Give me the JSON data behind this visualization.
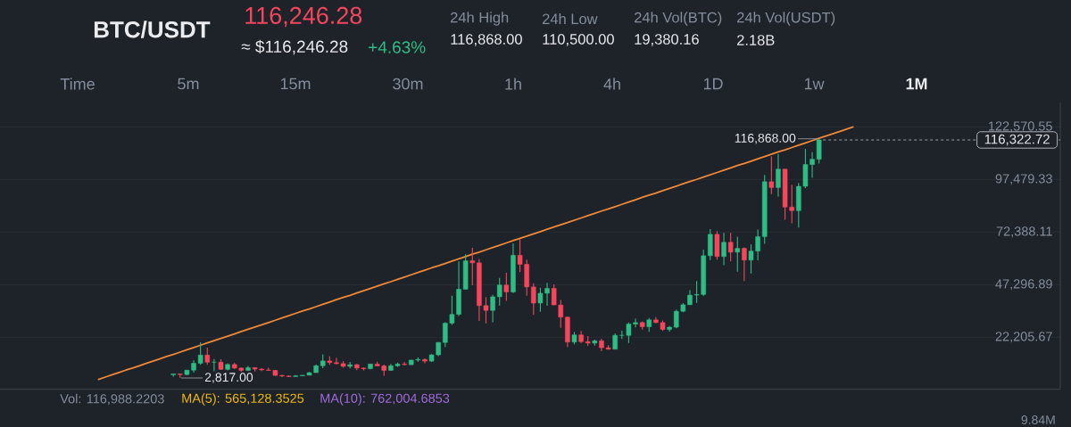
{
  "chart_data": {
    "type": "candlestick",
    "title": "BTC/USDT",
    "categories": [
      null,
      null,
      null,
      null,
      null,
      null,
      null,
      null,
      null,
      null,
      null,
      null,
      null,
      null,
      null,
      null,
      null,
      null,
      null,
      null,
      null,
      null,
      null,
      null,
      null,
      null,
      null,
      null,
      null,
      null,
      null,
      null,
      null,
      null,
      null,
      null,
      null,
      null,
      null,
      null,
      null,
      null,
      null,
      null,
      null,
      null,
      null,
      null,
      null,
      null,
      null,
      null,
      null,
      null,
      null,
      null,
      null,
      null,
      null,
      null,
      null,
      null,
      null,
      null,
      null,
      null,
      null,
      null,
      null,
      null,
      null,
      null,
      null,
      null,
      null,
      null,
      null,
      null,
      null,
      null,
      null,
      null,
      null,
      null,
      null,
      null,
      null,
      null,
      null,
      null,
      null,
      null,
      null,
      null,
      null,
      null,
      null,
      null,
      null,
      null,
      null,
      null,
      null,
      null,
      null,
      null,
      null,
      null,
      null,
      null,
      null,
      null,
      null,
      null,
      null,
      null,
      null,
      null,
      null,
      null,
      null,
      null,
      null,
      null,
      null,
      null,
      null,
      null,
      null,
      null,
      null,
      null,
      null,
      null,
      null,
      null,
      null,
      null,
      null,
      null,
      null,
      null,
      null,
      null,
      null,
      null,
      null,
      null,
      null,
      null,
      null,
      null,
      null,
      null,
      null,
      null
    ],
    "ohlc": [
      null,
      null,
      null,
      null,
      null,
      null,
      null,
      null,
      null,
      null,
      null,
      null,
      null,
      null,
      null,
      null,
      null,
      null,
      null,
      null,
      null,
      null,
      null,
      null,
      null,
      [
        4300,
        4700,
        3400,
        4700
      ],
      [
        4700,
        4900,
        2817,
        4400
      ],
      [
        4400,
        6500,
        4100,
        6500
      ],
      [
        6500,
        11300,
        5300,
        9800
      ],
      [
        9800,
        19800,
        9000,
        13700
      ],
      [
        13700,
        17200,
        9000,
        10300
      ],
      [
        10300,
        11800,
        6000,
        10300
      ],
      [
        10300,
        11700,
        6600,
        6900
      ],
      [
        6900,
        9800,
        6400,
        9200
      ],
      [
        9200,
        10000,
        7000,
        7500
      ],
      [
        7500,
        7800,
        5800,
        6400
      ],
      [
        6400,
        8500,
        6100,
        7700
      ],
      [
        7700,
        7800,
        5900,
        7000
      ],
      [
        7000,
        7400,
        6100,
        6600
      ],
      [
        6600,
        7700,
        6200,
        6400
      ],
      [
        6400,
        6600,
        3700,
        4000
      ],
      [
        4000,
        4300,
        3200,
        3700
      ],
      [
        3700,
        4100,
        3300,
        3400
      ],
      [
        3400,
        4200,
        3400,
        3800
      ],
      [
        3800,
        4100,
        3700,
        4100
      ],
      [
        4100,
        5600,
        4100,
        5300
      ],
      [
        5300,
        9100,
        5300,
        8600
      ],
      [
        8600,
        14000,
        7400,
        10900
      ],
      [
        10900,
        13100,
        9000,
        10100
      ],
      [
        10100,
        12300,
        9300,
        9600
      ],
      [
        9600,
        10900,
        7700,
        8300
      ],
      [
        8300,
        10400,
        7300,
        9100
      ],
      [
        9100,
        9500,
        6500,
        7500
      ],
      [
        7500,
        7800,
        6400,
        7200
      ],
      [
        7200,
        9600,
        6900,
        9400
      ],
      [
        9400,
        10500,
        8400,
        8500
      ],
      [
        8500,
        9200,
        3800,
        6400
      ],
      [
        6400,
        9500,
        6200,
        8600
      ],
      [
        8600,
        10100,
        8100,
        9400
      ],
      [
        9400,
        10400,
        8800,
        9100
      ],
      [
        9100,
        11400,
        8900,
        11300
      ],
      [
        11300,
        12500,
        10500,
        11600
      ],
      [
        11600,
        12100,
        9800,
        10800
      ],
      [
        10800,
        14100,
        10400,
        13800
      ],
      [
        13800,
        19900,
        13200,
        19700
      ],
      [
        19700,
        29300,
        17600,
        28900
      ],
      [
        28900,
        42000,
        28100,
        33100
      ],
      [
        33100,
        58400,
        32300,
        45100
      ],
      [
        45100,
        61800,
        45000,
        58700
      ],
      [
        58700,
        64900,
        47000,
        57700
      ],
      [
        57700,
        59500,
        30000,
        37300
      ],
      [
        37300,
        41300,
        28800,
        35000
      ],
      [
        35000,
        42400,
        29300,
        41500
      ],
      [
        41500,
        50500,
        37300,
        47100
      ],
      [
        47100,
        52900,
        39600,
        43800
      ],
      [
        43800,
        67000,
        43300,
        61300
      ],
      [
        61300,
        69000,
        53300,
        57000
      ],
      [
        57000,
        59100,
        42000,
        46200
      ],
      [
        46200,
        48000,
        32900,
        38500
      ],
      [
        38500,
        45800,
        34300,
        43200
      ],
      [
        43200,
        48200,
        37200,
        45500
      ],
      [
        45500,
        47400,
        37600,
        37600
      ],
      [
        37600,
        40000,
        26700,
        31800
      ],
      [
        31800,
        32000,
        17600,
        19900
      ],
      [
        19900,
        24700,
        18800,
        23300
      ],
      [
        23300,
        25200,
        19500,
        20100
      ],
      [
        20100,
        22800,
        18100,
        19400
      ],
      [
        19400,
        21100,
        18200,
        20500
      ],
      [
        20500,
        21500,
        15500,
        17200
      ],
      [
        17200,
        18400,
        16300,
        16500
      ],
      [
        16500,
        24000,
        16500,
        23100
      ],
      [
        23100,
        25300,
        21400,
        23100
      ],
      [
        23100,
        29200,
        19500,
        28500
      ],
      [
        28500,
        31000,
        26900,
        29200
      ],
      [
        29200,
        29800,
        25800,
        27200
      ],
      [
        27200,
        31400,
        24800,
        30500
      ],
      [
        30500,
        31800,
        28900,
        29200
      ],
      [
        29200,
        30200,
        25200,
        25900
      ],
      [
        25900,
        27500,
        24900,
        27000
      ],
      [
        27000,
        35300,
        26500,
        34600
      ],
      [
        34600,
        38500,
        34100,
        37700
      ],
      [
        37700,
        44700,
        37600,
        42300
      ],
      [
        42300,
        49000,
        38600,
        42600
      ],
      [
        42600,
        64000,
        41900,
        61100
      ],
      [
        61100,
        73800,
        59000,
        71300
      ],
      [
        71300,
        72800,
        59200,
        60700
      ],
      [
        60700,
        72000,
        56600,
        67500
      ],
      [
        67500,
        72000,
        58400,
        62800
      ],
      [
        62800,
        70100,
        53500,
        64600
      ],
      [
        64600,
        65100,
        49000,
        59000
      ],
      [
        59000,
        66500,
        52600,
        63300
      ],
      [
        63300,
        73600,
        58900,
        70200
      ],
      [
        70200,
        99600,
        66800,
        96400
      ],
      [
        96400,
        108400,
        90500,
        93600
      ],
      [
        93600,
        109600,
        89300,
        102400
      ],
      [
        102400,
        102500,
        78300,
        84300
      ],
      [
        84300,
        95000,
        76600,
        82600
      ],
      [
        82600,
        95800,
        74500,
        94200
      ],
      [
        94200,
        112000,
        93400,
        104600
      ],
      [
        104600,
        110500,
        98200,
        107100
      ],
      [
        107100,
        116868,
        105100,
        116322.72
      ],
      null,
      null,
      null,
      null,
      null,
      null,
      null,
      null,
      null,
      null,
      null,
      null,
      null,
      null,
      null,
      null,
      null,
      null,
      null,
      null,
      null,
      null,
      null,
      null,
      null,
      null,
      null,
      null,
      null,
      null,
      null,
      null,
      null,
      null,
      null
    ],
    "colors": [
      null,
      null,
      null,
      null,
      null,
      null,
      null,
      null,
      null,
      null,
      null,
      null,
      null,
      null,
      null,
      null,
      null,
      null,
      null,
      null,
      null,
      null,
      null,
      null,
      null,
      "#2ebd85",
      "#f6465d",
      "#2ebd85",
      "#2ebd85",
      "#2ebd85",
      "#f6465d",
      "#2ebd85",
      "#f6465d",
      "#2ebd85",
      "#f6465d",
      "#f6465d",
      "#2ebd85",
      "#f6465d",
      "#f6465d",
      "#f6465d",
      "#f6465d",
      "#f6465d",
      "#f6465d",
      "#2ebd85",
      "#2ebd85",
      "#2ebd85",
      "#2ebd85",
      "#2ebd85",
      "#f6465d",
      "#f6465d",
      "#f6465d",
      "#2ebd85",
      "#f6465d",
      "#f6465d",
      "#2ebd85",
      "#f6465d",
      "#f6465d",
      "#2ebd85",
      "#2ebd85",
      "#f6465d",
      "#2ebd85",
      "#2ebd85",
      "#f6465d",
      "#2ebd85",
      "#2ebd85",
      "#2ebd85",
      "#2ebd85",
      "#2ebd85",
      "#2ebd85",
      "#f6465d",
      "#f6465d",
      "#f6465d",
      "#2ebd85",
      "#2ebd85",
      "#f6465d",
      "#2ebd85",
      "#f6465d",
      "#f6465d",
      "#f6465d",
      "#2ebd85",
      "#2ebd85",
      "#f6465d",
      "#f6465d",
      "#f6465d",
      "#2ebd85",
      "#f6465d",
      "#f6465d",
      "#2ebd85",
      "#f6465d",
      "#f6465d",
      "#2ebd85",
      "#2ebd85",
      "#2ebd85",
      "#2ebd85",
      "#f6465d",
      "#2ebd85",
      "#f6465d",
      "#f6465d",
      "#2ebd85",
      "#2ebd85",
      "#2ebd85",
      "#2ebd85",
      "#2ebd85",
      "#2ebd85",
      "#2ebd85",
      "#f6465d",
      "#2ebd85",
      "#f6465d",
      "#2ebd85",
      "#f6465d",
      "#2ebd85",
      "#2ebd85",
      "#2ebd85",
      "#f6465d",
      "#2ebd85",
      "#f6465d",
      "#f6465d",
      "#2ebd85",
      "#2ebd85",
      "#2ebd85",
      "#2ebd85",
      null,
      null,
      null,
      null,
      null,
      null,
      null,
      null,
      null,
      null,
      null,
      null,
      null,
      null,
      null,
      null,
      null,
      null,
      null,
      null,
      null,
      null,
      null,
      null,
      null,
      null,
      null,
      null,
      null,
      null,
      null,
      null,
      null,
      null,
      null
    ],
    "series": [
      {
        "type": "line",
        "color": "#f0883a",
        "values": [
          null,
          null,
          null,
          null,
          null,
          null,
          null,
          null,
          null,
          null,
          null,
          null,
          null,
          null,
          2100,
          3200,
          4300,
          5400,
          6500,
          7500,
          8600,
          9700,
          10800,
          11900,
          13000,
          14000,
          15100,
          16200,
          17300,
          18400,
          19500,
          20600,
          21600,
          22700,
          23800,
          24900,
          26000,
          27100,
          28100,
          29200,
          30300,
          31400,
          32500,
          33600,
          34700,
          35700,
          36800,
          37900,
          39000,
          40100,
          41200,
          42200,
          43300,
          44400,
          45500,
          46600,
          47700,
          48700,
          49800,
          50900,
          52000,
          53100,
          54200,
          55300,
          56300,
          57400,
          58500,
          59600,
          60700,
          61800,
          62800,
          63900,
          65000,
          66100,
          67200,
          68300,
          69400,
          70400,
          71500,
          72600,
          73700,
          74800,
          75900,
          76900,
          78000,
          79100,
          80200,
          81300,
          82400,
          83400,
          84500,
          85600,
          86700,
          87800,
          88900,
          90000,
          91000,
          92100,
          93200,
          94300,
          95400,
          96500,
          97500,
          98600,
          99700,
          100800,
          101900,
          103000,
          104100,
          105100,
          106200,
          107300,
          108400,
          109500,
          110600,
          111600,
          112700,
          113800,
          114900,
          116000,
          117100,
          118200,
          119200,
          120300,
          121400,
          122500,
          null,
          null,
          null,
          null,
          null,
          null,
          null,
          null,
          null,
          null,
          null,
          null,
          null,
          null,
          null,
          null,
          null,
          null,
          null,
          null,
          null,
          null,
          null,
          null,
          null,
          null,
          null,
          null,
          null,
          null
        ]
      }
    ],
    "ref_lines": [
      {
        "axis": "y",
        "value": 116322.72,
        "label": "116,322.72",
        "color": "#d0d4da",
        "line_style": "dashed"
      }
    ],
    "annotations": [
      "116,246.28",
      "≈ $116,246.28",
      "+4.63%",
      "24h High",
      "116,868.00",
      "24h Low",
      "110,500.00",
      "24h Vol(BTC)",
      "19,380.16",
      "24h Vol(USDT)",
      "2.18B",
      "Time",
      "5m",
      "15m",
      "30m",
      "1h",
      "4h",
      "1D",
      "1w",
      "1M",
      "Vol: 116,988.2203",
      "MA(5): 565,128.3525",
      "MA(10): 762,004.6853",
      "9.84M",
      "116,868.00",
      "2,817.00"
    ],
    "ylim": [
      -2630,
      134180
    ],
    "yticks": [
      {
        "value": 22205.67,
        "label": "22,205.67"
      },
      {
        "value": 47296.89,
        "label": "47,296.89"
      },
      {
        "value": 72388.11,
        "label": "72,388.11"
      },
      {
        "value": 97479.33,
        "label": "97,479.33"
      },
      {
        "value": 122570.55,
        "label": "122,570.55"
      }
    ],
    "grid": "y",
    "tick_labels": "y"
  }
}
